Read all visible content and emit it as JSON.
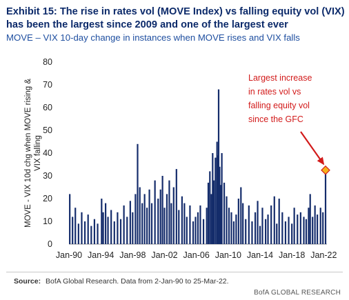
{
  "header": {
    "title_line1": "Exhibit 15: The rise in rates vol (MOVE Index) vs falling equity vol (VIX)",
    "title_line2": "has been the largest since 2009 and one of the largest ever",
    "subtitle": "MOVE – VIX 10-day change in instances when MOVE rises and VIX falls"
  },
  "footer": {
    "source_label": "Source:",
    "source_text": "BofA Global Research. Data from 2-Jan-90 to 25-Mar-22.",
    "brand": "BofA GLOBAL RESEARCH"
  },
  "colors": {
    "bars": "#142c6b",
    "title": "#0c2a6a",
    "subtitle": "#1f4fa0",
    "annotation": "#d21a1a",
    "marker_fill": "#f5b21b",
    "marker_stroke": "#d21a1a"
  },
  "chart_data": {
    "type": "bar",
    "title": "",
    "xlabel": "",
    "ylabel": "MOVE - VIX 10d chg when MOVE rising & VIX falling",
    "ylim": [
      0,
      80
    ],
    "yticks": [
      0,
      10,
      20,
      30,
      40,
      50,
      60,
      70,
      80
    ],
    "xticks": [
      "Jan-90",
      "Jan-94",
      "Jan-98",
      "Jan-02",
      "Jan-06",
      "Jan-10",
      "Jan-14",
      "Jan-18",
      "Jan-22"
    ],
    "x_range": [
      1990.0,
      2022.23
    ],
    "grid": false,
    "legend": "none",
    "annotation": {
      "text_lines": [
        "Largest increase",
        "in rates vol vs",
        "falling equity vol",
        "since the GFC"
      ]
    },
    "series": [
      {
        "points": [
          [
            1990.1,
            22
          ],
          [
            1990.45,
            12
          ],
          [
            1990.8,
            16
          ],
          [
            1991.2,
            9
          ],
          [
            1991.6,
            14
          ],
          [
            1992.0,
            10
          ],
          [
            1992.4,
            13
          ],
          [
            1992.8,
            8
          ],
          [
            1993.2,
            11
          ],
          [
            1993.6,
            9
          ],
          [
            1994.1,
            20
          ],
          [
            1994.3,
            14
          ],
          [
            1994.6,
            18
          ],
          [
            1994.9,
            12
          ],
          [
            1995.3,
            15
          ],
          [
            1995.7,
            10
          ],
          [
            1996.1,
            14
          ],
          [
            1996.5,
            11
          ],
          [
            1996.9,
            17
          ],
          [
            1997.3,
            12
          ],
          [
            1997.7,
            19
          ],
          [
            1998.0,
            14
          ],
          [
            1998.35,
            22
          ],
          [
            1998.62,
            44
          ],
          [
            1998.9,
            25
          ],
          [
            1999.2,
            18
          ],
          [
            1999.5,
            22
          ],
          [
            1999.8,
            16
          ],
          [
            2000.1,
            24
          ],
          [
            2000.4,
            18
          ],
          [
            2000.8,
            28
          ],
          [
            2001.2,
            20
          ],
          [
            2001.5,
            24
          ],
          [
            2001.75,
            30
          ],
          [
            2002.0,
            16
          ],
          [
            2002.3,
            22
          ],
          [
            2002.6,
            28
          ],
          [
            2002.85,
            18
          ],
          [
            2003.15,
            25
          ],
          [
            2003.5,
            33
          ],
          [
            2003.8,
            15
          ],
          [
            2004.2,
            21
          ],
          [
            2004.5,
            18
          ],
          [
            2004.8,
            12
          ],
          [
            2005.2,
            17
          ],
          [
            2005.6,
            10
          ],
          [
            2005.9,
            12
          ],
          [
            2006.2,
            14
          ],
          [
            2006.5,
            17
          ],
          [
            2006.9,
            11
          ],
          [
            2007.3,
            16
          ],
          [
            2007.5,
            27
          ],
          [
            2007.7,
            32
          ],
          [
            2007.9,
            22
          ],
          [
            2008.05,
            40
          ],
          [
            2008.2,
            28
          ],
          [
            2008.4,
            38
          ],
          [
            2008.6,
            45
          ],
          [
            2008.72,
            39
          ],
          [
            2008.8,
            68
          ],
          [
            2008.92,
            34
          ],
          [
            2009.05,
            26
          ],
          [
            2009.2,
            40
          ],
          [
            2009.5,
            27
          ],
          [
            2009.8,
            21
          ],
          [
            2010.1,
            16
          ],
          [
            2010.4,
            14
          ],
          [
            2010.7,
            10
          ],
          [
            2011.0,
            13
          ],
          [
            2011.3,
            20
          ],
          [
            2011.6,
            25
          ],
          [
            2011.85,
            18
          ],
          [
            2012.2,
            11
          ],
          [
            2012.6,
            17
          ],
          [
            2013.0,
            10
          ],
          [
            2013.4,
            14
          ],
          [
            2013.7,
            19
          ],
          [
            2014.0,
            8
          ],
          [
            2014.3,
            16
          ],
          [
            2014.7,
            11
          ],
          [
            2015.0,
            13
          ],
          [
            2015.4,
            17
          ],
          [
            2015.8,
            21
          ],
          [
            2016.1,
            9
          ],
          [
            2016.4,
            20
          ],
          [
            2016.8,
            14
          ],
          [
            2017.2,
            10
          ],
          [
            2017.6,
            12
          ],
          [
            2018.0,
            9
          ],
          [
            2018.3,
            16
          ],
          [
            2018.7,
            13
          ],
          [
            2019.1,
            14
          ],
          [
            2019.5,
            12
          ],
          [
            2019.8,
            11
          ],
          [
            2020.1,
            16
          ],
          [
            2020.3,
            22
          ],
          [
            2020.6,
            12
          ],
          [
            2020.9,
            17
          ],
          [
            2021.2,
            13
          ],
          [
            2021.6,
            16
          ],
          [
            2021.9,
            14
          ],
          [
            2022.23,
            32.5
          ]
        ]
      }
    ]
  }
}
